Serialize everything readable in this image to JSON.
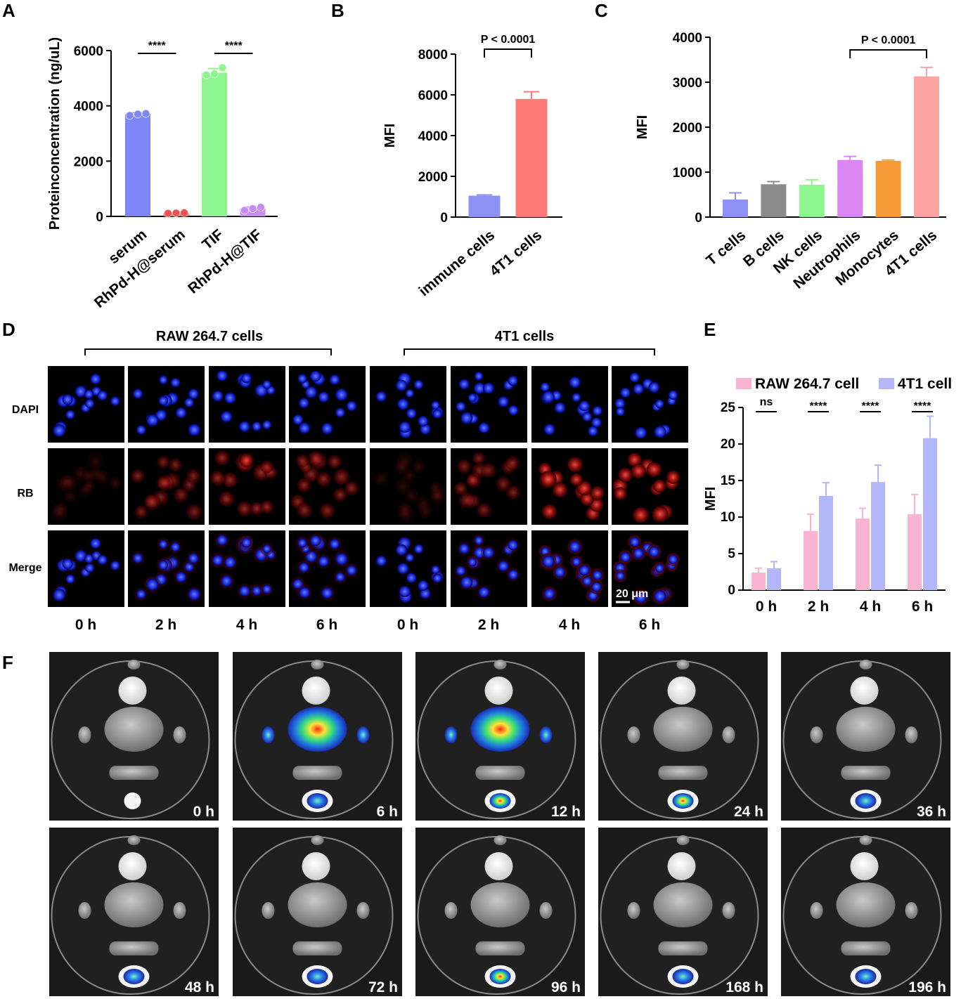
{
  "panels": {
    "A": "A",
    "B": "B",
    "C": "C",
    "D": "D",
    "E": "E",
    "F": "F"
  },
  "chart_data": [
    {
      "id": "A",
      "type": "bar",
      "categories": [
        "serum",
        "RhPd-H@serum",
        "TIF",
        "RhPd-H@TIF"
      ],
      "values": [
        3700,
        120,
        5200,
        280
      ],
      "errors": [
        50,
        20,
        150,
        60
      ],
      "points": [
        [
          3650,
          3700,
          3720
        ],
        [
          110,
          120,
          130
        ],
        [
          5120,
          5160,
          5380
        ],
        [
          220,
          280,
          330
        ]
      ],
      "colors": [
        "#7f86f6",
        "#f05050",
        "#8ef58e",
        "#c98cf0"
      ],
      "ylabel": "Proteinconcentration (ng/uL)",
      "yticks": [
        0,
        2000,
        4000,
        6000
      ],
      "ylim": [
        0,
        6000
      ],
      "comparisons": [
        {
          "from": 0,
          "to": 1,
          "label": "****"
        },
        {
          "from": 2,
          "to": 3,
          "label": "****"
        }
      ]
    },
    {
      "id": "B",
      "type": "bar",
      "categories": [
        "immune cells",
        "4T1 cells"
      ],
      "values": [
        1050,
        5800
      ],
      "errors": [
        40,
        350
      ],
      "colors": [
        "#8d92f5",
        "#fb7a7a"
      ],
      "ylabel": "MFI",
      "yticks": [
        0,
        2000,
        4000,
        6000,
        8000
      ],
      "ylim": [
        0,
        8000
      ],
      "comparisons": [
        {
          "from": 0,
          "to": 1,
          "label": "P < 0.0001"
        }
      ]
    },
    {
      "id": "C",
      "type": "bar",
      "categories": [
        "T cells",
        "B cells",
        "NK cells",
        "Neutrophils",
        "Monocytes",
        "4T1 cells"
      ],
      "values": [
        390,
        730,
        720,
        1270,
        1250,
        3130
      ],
      "errors": [
        150,
        60,
        110,
        80,
        20,
        200
      ],
      "colors": [
        "#8d90f5",
        "#8c8c8c",
        "#8ef58e",
        "#dc86f3",
        "#f79a3a",
        "#fca4a4"
      ],
      "ylabel": "MFI",
      "yticks": [
        0,
        1000,
        2000,
        3000,
        4000
      ],
      "ylim": [
        0,
        4000
      ],
      "comparisons": [
        {
          "from": 3,
          "to": 5,
          "label": "P < 0.0001"
        }
      ]
    },
    {
      "id": "E",
      "type": "bar",
      "categories": [
        "0 h",
        "2 h",
        "4 h",
        "6 h"
      ],
      "series": [
        {
          "name": "RAW 264.7 cell",
          "values": [
            2.4,
            8.1,
            9.8,
            10.4
          ],
          "errors": [
            0.6,
            2.3,
            1.4,
            2.7
          ],
          "color": "#f9b3d2"
        },
        {
          "name": "4T1 cell",
          "values": [
            3.0,
            12.9,
            14.8,
            20.8
          ],
          "errors": [
            0.9,
            1.8,
            2.3,
            3.0
          ],
          "color": "#b3b6f8"
        }
      ],
      "ylabel": "MFI",
      "yticks": [
        0,
        5,
        10,
        15,
        20,
        25
      ],
      "ylim": [
        0,
        25
      ],
      "comparisons": [
        "ns",
        "****",
        "****",
        "****"
      ]
    }
  ],
  "panelD": {
    "group_left": "RAW 264.7 cells",
    "group_right": "4T1 cells",
    "rows": [
      "DAPI",
      "RB",
      "Merge"
    ],
    "columns": [
      "0 h",
      "2 h",
      "4 h",
      "6 h",
      "0 h",
      "2 h",
      "4 h",
      "6 h"
    ],
    "scale_bar": "20 μm"
  },
  "panelF": {
    "timepoints": [
      "0 h",
      "6 h",
      "12 h",
      "24 h",
      "36 h",
      "48 h",
      "72 h",
      "96 h",
      "168 h",
      "196 h"
    ]
  }
}
